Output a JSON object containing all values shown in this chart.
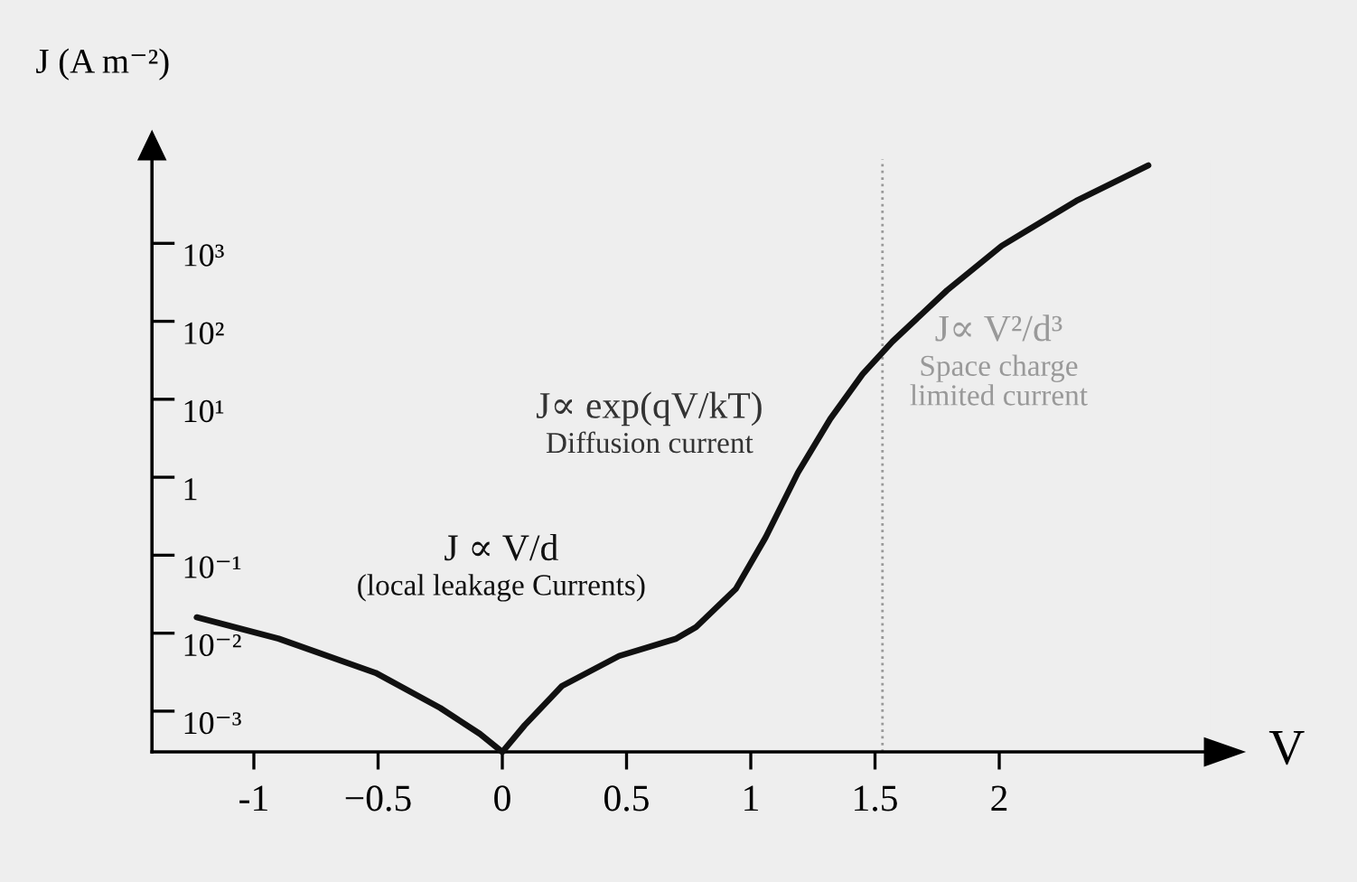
{
  "chart_data": {
    "type": "line",
    "xlabel": "V",
    "ylabel": "J (A m⁻²)",
    "log": "y",
    "x": [
      -1.23,
      -0.9,
      -0.51,
      -0.25,
      -0.09,
      0,
      0.09,
      0.24,
      0.47,
      0.7,
      0.78,
      0.94,
      1.06,
      1.19,
      1.32,
      1.45,
      1.57,
      1.79,
      2.01,
      2.31,
      2.6
    ],
    "series": [
      {
        "color": "#111111",
        "values": [
          0.016,
          0.0085,
          0.0031,
          0.0011,
          0.00051,
          0.0003,
          0.00066,
          0.0021,
          0.0051,
          0.0085,
          0.012,
          0.037,
          0.17,
          1.15,
          5.6,
          21,
          55,
          250,
          930,
          3500,
          10000
        ]
      }
    ],
    "xlim": [
      -1.41,
      2.85
    ],
    "xticks": [
      -1,
      {
        "value": -0.5,
        "label": "−0.5"
      },
      0,
      0.5,
      1,
      1.5,
      2
    ],
    "ylim": [
      0.0003,
      12000
    ],
    "yticks": [
      {
        "value": 0.001,
        "label": "10⁻³"
      },
      {
        "value": 0.01,
        "label": "10⁻²"
      },
      {
        "value": 0.1,
        "label": "10⁻¹"
      },
      1,
      {
        "value": 10,
        "label": "10¹"
      },
      {
        "value": 100,
        "label": "10²"
      },
      {
        "value": 1000,
        "label": "10³"
      }
    ],
    "ref_lines": [
      {
        "axis": "x",
        "value": 1.53,
        "color": "#999999",
        "line_style": "dotted"
      }
    ],
    "annotations": [
      "J ∝ V/d\n(local leakage Currents)",
      "J∝ exp(qV/kT)\nDiffusion current",
      "J∝ V²/d³\nSpace charge\nlimited current"
    ],
    "grid": false,
    "legend": false,
    "marker": "none",
    "line_style": "solid"
  }
}
